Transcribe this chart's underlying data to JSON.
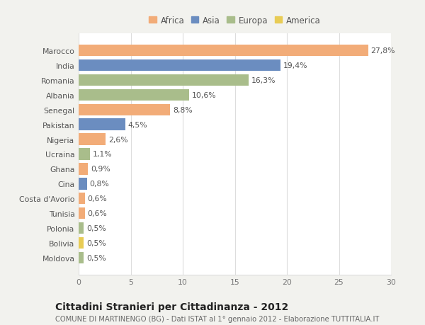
{
  "countries": [
    "Marocco",
    "India",
    "Romania",
    "Albania",
    "Senegal",
    "Pakistan",
    "Nigeria",
    "Ucraina",
    "Ghana",
    "Cina",
    "Costa d'Avorio",
    "Tunisia",
    "Polonia",
    "Bolivia",
    "Moldova"
  ],
  "values": [
    27.8,
    19.4,
    16.3,
    10.6,
    8.8,
    4.5,
    2.6,
    1.1,
    0.9,
    0.8,
    0.6,
    0.6,
    0.5,
    0.5,
    0.5
  ],
  "continents": [
    "Africa",
    "Asia",
    "Europa",
    "Europa",
    "Africa",
    "Asia",
    "Africa",
    "Europa",
    "Africa",
    "Asia",
    "Africa",
    "Africa",
    "Europa",
    "America",
    "Europa"
  ],
  "labels": [
    "27,8%",
    "19,4%",
    "16,3%",
    "10,6%",
    "8,8%",
    "4,5%",
    "2,6%",
    "1,1%",
    "0,9%",
    "0,8%",
    "0,6%",
    "0,6%",
    "0,5%",
    "0,5%",
    "0,5%"
  ],
  "colors": {
    "Africa": "#F2AC78",
    "Asia": "#6B8DC0",
    "Europa": "#A9BD8B",
    "America": "#E8CC55"
  },
  "legend_order": [
    "Africa",
    "Asia",
    "Europa",
    "America"
  ],
  "title": "Cittadini Stranieri per Cittadinanza - 2012",
  "subtitle": "COMUNE DI MARTINENGO (BG) - Dati ISTAT al 1° gennaio 2012 - Elaborazione TUTTITALIA.IT",
  "xlim": [
    0,
    30
  ],
  "xticks": [
    0,
    5,
    10,
    15,
    20,
    25,
    30
  ],
  "background_color": "#f2f2ee",
  "plot_background": "#ffffff",
  "grid_color": "#dddddd",
  "bar_height": 0.78,
  "label_fontsize": 7.8,
  "tick_fontsize": 7.8,
  "title_fontsize": 10,
  "subtitle_fontsize": 7.2
}
